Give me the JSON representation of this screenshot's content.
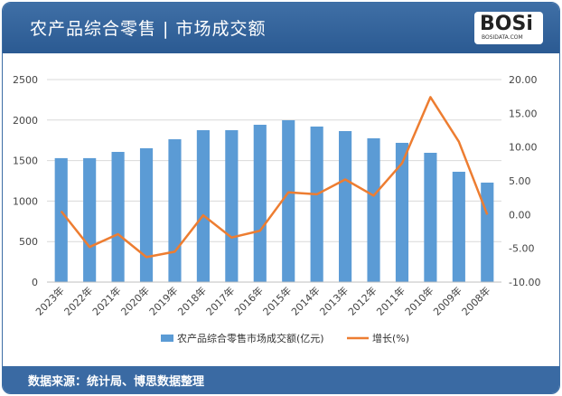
{
  "header": {
    "title": "农产品综合零售 | 市场成交额",
    "logo_text": "BOSi",
    "logo_sub": "BOSIDATA.COM"
  },
  "footer": {
    "source": "数据来源：统计局、博思数据整理"
  },
  "colors": {
    "bar": "#5b9bd5",
    "line": "#ed7d31",
    "header": "#2f5e96"
  },
  "chart_data": {
    "type": "bar+line",
    "categories": [
      "2023年",
      "2022年",
      "2021年",
      "2020年",
      "2019年",
      "2018年",
      "2017年",
      "2016年",
      "2015年",
      "2014年",
      "2013年",
      "2012年",
      "2011年",
      "2010年",
      "2009年",
      "2008年"
    ],
    "series": [
      {
        "name": "农产品综合零售市场成交额(亿元)",
        "type": "bar",
        "axis": "left",
        "values": [
          1530,
          1530,
          1607,
          1652,
          1763,
          1875,
          1875,
          1942,
          1998,
          1920,
          1864,
          1775,
          1719,
          1596,
          1362,
          1228
        ]
      },
      {
        "name": "增长(%)",
        "type": "line",
        "axis": "right",
        "values": [
          0.5,
          -4.8,
          -2.9,
          -6.3,
          -5.5,
          -0.1,
          -3.4,
          -2.4,
          3.3,
          3.0,
          5.2,
          2.8,
          7.6,
          17.4,
          10.8,
          0.0
        ]
      }
    ],
    "left_axis": {
      "ylim": [
        0,
        2500
      ],
      "ticks": [
        "0",
        "500",
        "1000",
        "1500",
        "2000",
        "2500"
      ]
    },
    "right_axis": {
      "ylim": [
        -10,
        20
      ],
      "ticks": [
        "-10.00",
        "-5.00",
        "0.00",
        "5.00",
        "10.00",
        "15.00",
        "20.00"
      ]
    },
    "grid": true,
    "legend": "bottom"
  }
}
